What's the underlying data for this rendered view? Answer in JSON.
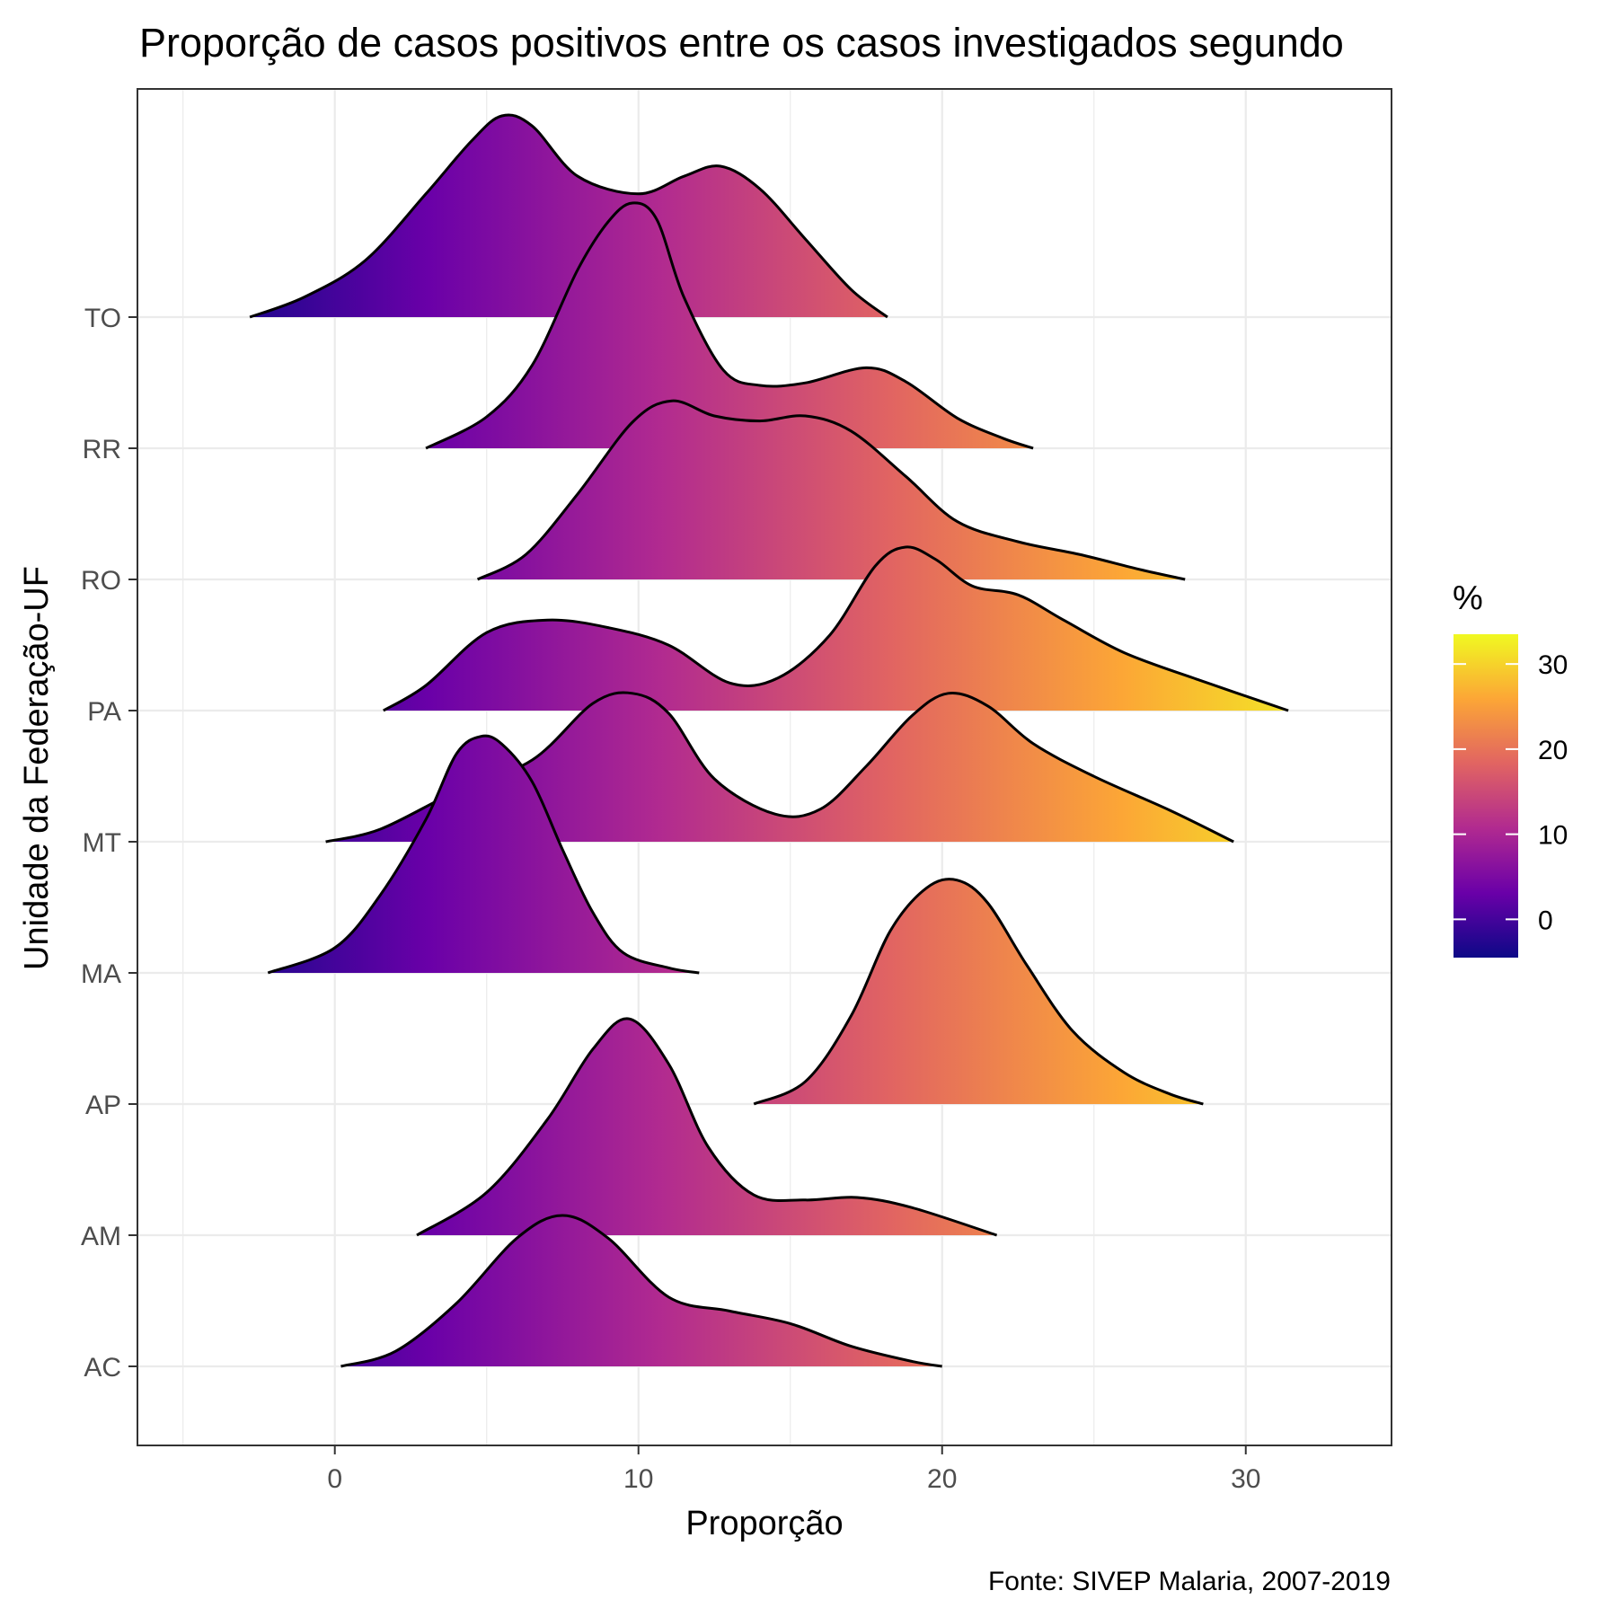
{
  "chart_data": {
    "type": "ridgeline",
    "title": "Proporção de casos positivos entre os casos investigados segundo",
    "xlabel": "Proporção",
    "ylabel": "Unidade da Federação-UF",
    "caption": "Fonte: SIVEP Malaria, 2007-2019",
    "xlim": [
      -6.5,
      34.8
    ],
    "x_ticks": [
      0,
      10,
      20,
      30
    ],
    "categories": [
      "AC",
      "AM",
      "AP",
      "MA",
      "MT",
      "PA",
      "RO",
      "RR",
      "TO"
    ],
    "legend": {
      "title": "%",
      "placement": "right",
      "range": [
        -4.5,
        33.5
      ],
      "ticks": [
        0,
        10,
        20,
        30
      ],
      "colors": [
        "#0d0887",
        "#6a00a8",
        "#b12a90",
        "#e16462",
        "#fca636",
        "#f0f921"
      ]
    },
    "grid": true,
    "series": [
      {
        "name": "AC",
        "points": [
          [
            0.2,
            0
          ],
          [
            2,
            0.12
          ],
          [
            4,
            0.5
          ],
          [
            6,
            1.02
          ],
          [
            7.5,
            1.2
          ],
          [
            9,
            1.02
          ],
          [
            11,
            0.55
          ],
          [
            13,
            0.44
          ],
          [
            15,
            0.34
          ],
          [
            17,
            0.16
          ],
          [
            19,
            0.04
          ],
          [
            20,
            0
          ]
        ]
      },
      {
        "name": "AM",
        "points": [
          [
            2.7,
            0
          ],
          [
            5,
            0.34
          ],
          [
            7,
            0.92
          ],
          [
            8.5,
            1.48
          ],
          [
            9.7,
            1.72
          ],
          [
            11,
            1.36
          ],
          [
            12.3,
            0.7
          ],
          [
            13.8,
            0.32
          ],
          [
            15.5,
            0.28
          ],
          [
            17.2,
            0.3
          ],
          [
            19,
            0.22
          ],
          [
            21.8,
            0
          ]
        ]
      },
      {
        "name": "AP",
        "points": [
          [
            13.8,
            0
          ],
          [
            15.5,
            0.18
          ],
          [
            17,
            0.7
          ],
          [
            18.3,
            1.38
          ],
          [
            19.5,
            1.72
          ],
          [
            20.5,
            1.78
          ],
          [
            21.5,
            1.6
          ],
          [
            22.8,
            1.1
          ],
          [
            24.3,
            0.58
          ],
          [
            26,
            0.25
          ],
          [
            27.5,
            0.08
          ],
          [
            28.6,
            0
          ]
        ]
      },
      {
        "name": "MA",
        "points": [
          [
            -2.2,
            0
          ],
          [
            0,
            0.2
          ],
          [
            1.5,
            0.62
          ],
          [
            3,
            1.22
          ],
          [
            4,
            1.74
          ],
          [
            4.8,
            1.88
          ],
          [
            5.5,
            1.82
          ],
          [
            6.5,
            1.52
          ],
          [
            7.5,
            0.98
          ],
          [
            8.5,
            0.48
          ],
          [
            9.5,
            0.16
          ],
          [
            11,
            0.04
          ],
          [
            12,
            0
          ]
        ]
      },
      {
        "name": "MT",
        "points": [
          [
            -0.3,
            0
          ],
          [
            1.5,
            0.1
          ],
          [
            4,
            0.4
          ],
          [
            6.5,
            0.65
          ],
          [
            8.5,
            1.1
          ],
          [
            9.8,
            1.18
          ],
          [
            11,
            1.02
          ],
          [
            12.5,
            0.5
          ],
          [
            14.5,
            0.22
          ],
          [
            16,
            0.26
          ],
          [
            17.5,
            0.6
          ],
          [
            19,
            1.0
          ],
          [
            20.2,
            1.18
          ],
          [
            21.5,
            1.08
          ],
          [
            23,
            0.78
          ],
          [
            25,
            0.52
          ],
          [
            27.5,
            0.25
          ],
          [
            29.6,
            0
          ]
        ]
      },
      {
        "name": "PA",
        "points": [
          [
            1.6,
            0
          ],
          [
            3,
            0.2
          ],
          [
            5,
            0.62
          ],
          [
            7,
            0.72
          ],
          [
            9,
            0.66
          ],
          [
            11,
            0.52
          ],
          [
            13,
            0.22
          ],
          [
            14.6,
            0.26
          ],
          [
            16.3,
            0.6
          ],
          [
            17.8,
            1.15
          ],
          [
            18.8,
            1.3
          ],
          [
            19.8,
            1.2
          ],
          [
            21,
            0.99
          ],
          [
            22.5,
            0.92
          ],
          [
            24,
            0.72
          ],
          [
            26,
            0.46
          ],
          [
            28.5,
            0.24
          ],
          [
            31.4,
            0
          ]
        ]
      },
      {
        "name": "RO",
        "points": [
          [
            4.7,
            0
          ],
          [
            6.3,
            0.2
          ],
          [
            8,
            0.68
          ],
          [
            9.8,
            1.25
          ],
          [
            11.1,
            1.42
          ],
          [
            12.5,
            1.3
          ],
          [
            14,
            1.26
          ],
          [
            15.5,
            1.3
          ],
          [
            17,
            1.18
          ],
          [
            18.8,
            0.82
          ],
          [
            20.5,
            0.46
          ],
          [
            22.5,
            0.3
          ],
          [
            24.5,
            0.2
          ],
          [
            26.5,
            0.08
          ],
          [
            28,
            0
          ]
        ]
      },
      {
        "name": "RR",
        "points": [
          [
            3,
            0
          ],
          [
            5,
            0.25
          ],
          [
            6.5,
            0.66
          ],
          [
            8,
            1.42
          ],
          [
            9,
            1.8
          ],
          [
            9.8,
            1.95
          ],
          [
            10.6,
            1.82
          ],
          [
            11.5,
            1.2
          ],
          [
            12.8,
            0.62
          ],
          [
            14,
            0.5
          ],
          [
            15.5,
            0.52
          ],
          [
            17.5,
            0.64
          ],
          [
            18.8,
            0.53
          ],
          [
            20.5,
            0.24
          ],
          [
            22,
            0.08
          ],
          [
            23,
            0
          ]
        ]
      },
      {
        "name": "TO",
        "points": [
          [
            -2.8,
            0
          ],
          [
            -1,
            0.16
          ],
          [
            1,
            0.45
          ],
          [
            3,
            0.98
          ],
          [
            4.5,
            1.4
          ],
          [
            5.5,
            1.6
          ],
          [
            6.5,
            1.52
          ],
          [
            8,
            1.12
          ],
          [
            10,
            0.98
          ],
          [
            11.5,
            1.12
          ],
          [
            12.7,
            1.2
          ],
          [
            14,
            1.02
          ],
          [
            15.5,
            0.62
          ],
          [
            17,
            0.22
          ],
          [
            18.2,
            0
          ]
        ]
      }
    ]
  }
}
